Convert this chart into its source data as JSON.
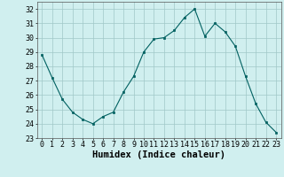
{
  "x": [
    0,
    1,
    2,
    3,
    4,
    5,
    6,
    7,
    8,
    9,
    10,
    11,
    12,
    13,
    14,
    15,
    16,
    17,
    18,
    19,
    20,
    21,
    22,
    23
  ],
  "y": [
    28.8,
    27.2,
    25.7,
    24.8,
    24.3,
    24.0,
    24.5,
    24.8,
    26.2,
    27.3,
    29.0,
    29.9,
    30.0,
    30.5,
    31.4,
    32.0,
    30.1,
    31.0,
    30.4,
    29.4,
    27.3,
    25.4,
    24.1,
    23.4
  ],
  "line_color": "#006060",
  "marker_color": "#006060",
  "bg_color": "#d0efef",
  "grid_color": "#a0c8c8",
  "xlabel": "Humidex (Indice chaleur)",
  "xlim": [
    -0.5,
    23.5
  ],
  "ylim": [
    23,
    32.5
  ],
  "yticks": [
    23,
    24,
    25,
    26,
    27,
    28,
    29,
    30,
    31,
    32
  ],
  "xticks": [
    0,
    1,
    2,
    3,
    4,
    5,
    6,
    7,
    8,
    9,
    10,
    11,
    12,
    13,
    14,
    15,
    16,
    17,
    18,
    19,
    20,
    21,
    22,
    23
  ],
  "tick_fontsize": 6.0,
  "xlabel_fontsize": 7.5
}
